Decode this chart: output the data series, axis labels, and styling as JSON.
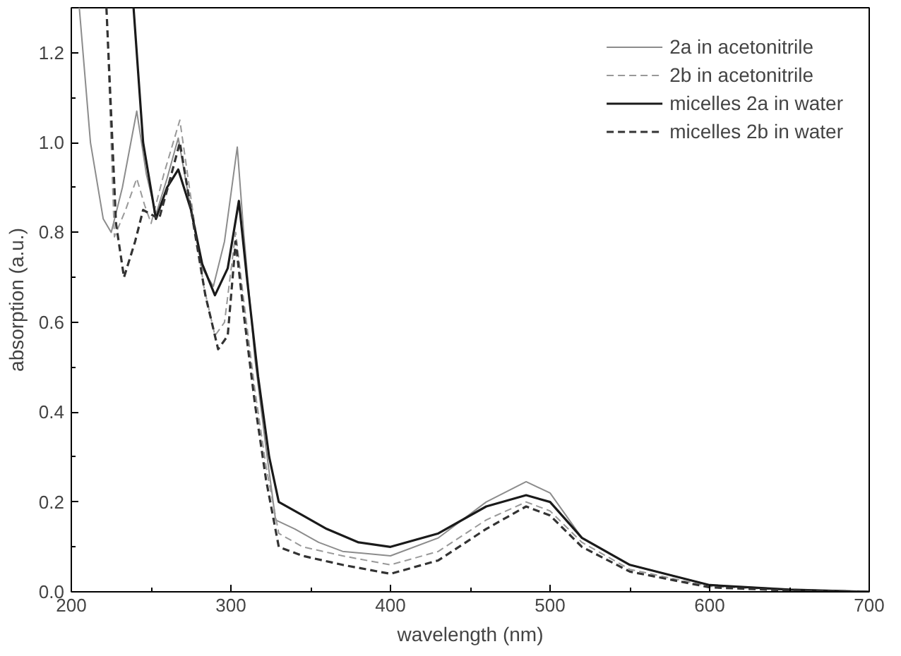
{
  "chart_data": {
    "type": "line",
    "xlabel": "wavelength (nm)",
    "ylabel": "absorption (a.u.)",
    "xlim": [
      200,
      700
    ],
    "ylim": [
      0,
      1.3
    ],
    "xticks": [
      200,
      300,
      400,
      500,
      600,
      700
    ],
    "yticks": [
      {
        "value": 0,
        "label": "0.0"
      },
      {
        "value": 0.2,
        "label": "0.2"
      },
      {
        "value": 0.4,
        "label": "0.4"
      },
      {
        "value": 0.6,
        "label": "0.6"
      },
      {
        "value": 0.8,
        "label": "0.8"
      },
      {
        "value": 1.0,
        "label": "1.0"
      },
      {
        "value": 1.2,
        "label": "1.2"
      }
    ],
    "legend": "top right",
    "grid": false,
    "marker": "none",
    "series": [
      {
        "name": "2a in acetonitrile",
        "color": "#8c8c8c",
        "line_style": "solid",
        "x": [
          205,
          212,
          220,
          225,
          232,
          241,
          247,
          253,
          260,
          267,
          275,
          282,
          289,
          296,
          304,
          308,
          315,
          322,
          328,
          340,
          355,
          370,
          400,
          430,
          460,
          485,
          500,
          520,
          550,
          600,
          650,
          700
        ],
        "values": [
          1.3,
          1.0,
          0.83,
          0.8,
          0.9,
          1.07,
          0.93,
          0.84,
          0.92,
          1.01,
          0.85,
          0.72,
          0.68,
          0.78,
          0.99,
          0.8,
          0.52,
          0.32,
          0.16,
          0.14,
          0.11,
          0.09,
          0.08,
          0.12,
          0.2,
          0.245,
          0.22,
          0.12,
          0.06,
          0.015,
          0.005,
          0.0
        ]
      },
      {
        "name": "2b in acetonitrile",
        "color": "#999999",
        "line_style": "dashed",
        "x": [
          222,
          227,
          234,
          241,
          246,
          250,
          258,
          268,
          276,
          283,
          290,
          296,
          303,
          308,
          315,
          322,
          330,
          345,
          370,
          400,
          430,
          460,
          485,
          500,
          520,
          550,
          600,
          650,
          700
        ],
        "values": [
          1.3,
          0.79,
          0.85,
          0.92,
          0.86,
          0.82,
          0.93,
          1.05,
          0.85,
          0.68,
          0.57,
          0.6,
          0.8,
          0.65,
          0.45,
          0.28,
          0.13,
          0.1,
          0.08,
          0.06,
          0.09,
          0.16,
          0.2,
          0.18,
          0.11,
          0.05,
          0.012,
          0.004,
          0.0
        ]
      },
      {
        "name": "micelles 2a in water",
        "color": "#1a1a1a",
        "line_style": "solid",
        "x": [
          239,
          245,
          253,
          260,
          267,
          275,
          282,
          290,
          298,
          305,
          310,
          317,
          324,
          330,
          345,
          360,
          380,
          400,
          430,
          460,
          485,
          500,
          520,
          550,
          600,
          650,
          700
        ],
        "values": [
          1.3,
          1.0,
          0.83,
          0.9,
          0.94,
          0.85,
          0.73,
          0.66,
          0.72,
          0.87,
          0.7,
          0.48,
          0.3,
          0.2,
          0.17,
          0.14,
          0.11,
          0.1,
          0.13,
          0.19,
          0.215,
          0.2,
          0.12,
          0.06,
          0.015,
          0.005,
          0.0
        ]
      },
      {
        "name": "micelles 2b in water",
        "color": "#333333",
        "line_style": "dashed",
        "x": [
          222,
          228,
          233,
          240,
          245,
          250,
          255,
          262,
          268,
          276,
          284,
          292,
          298,
          303,
          308,
          315,
          322,
          330,
          345,
          370,
          400,
          430,
          460,
          485,
          500,
          520,
          550,
          600,
          650,
          700
        ],
        "values": [
          1.3,
          0.82,
          0.7,
          0.78,
          0.85,
          0.84,
          0.83,
          0.92,
          1.0,
          0.83,
          0.66,
          0.54,
          0.57,
          0.78,
          0.62,
          0.42,
          0.25,
          0.1,
          0.08,
          0.06,
          0.04,
          0.07,
          0.14,
          0.19,
          0.17,
          0.1,
          0.045,
          0.01,
          0.003,
          0.0
        ]
      }
    ]
  }
}
